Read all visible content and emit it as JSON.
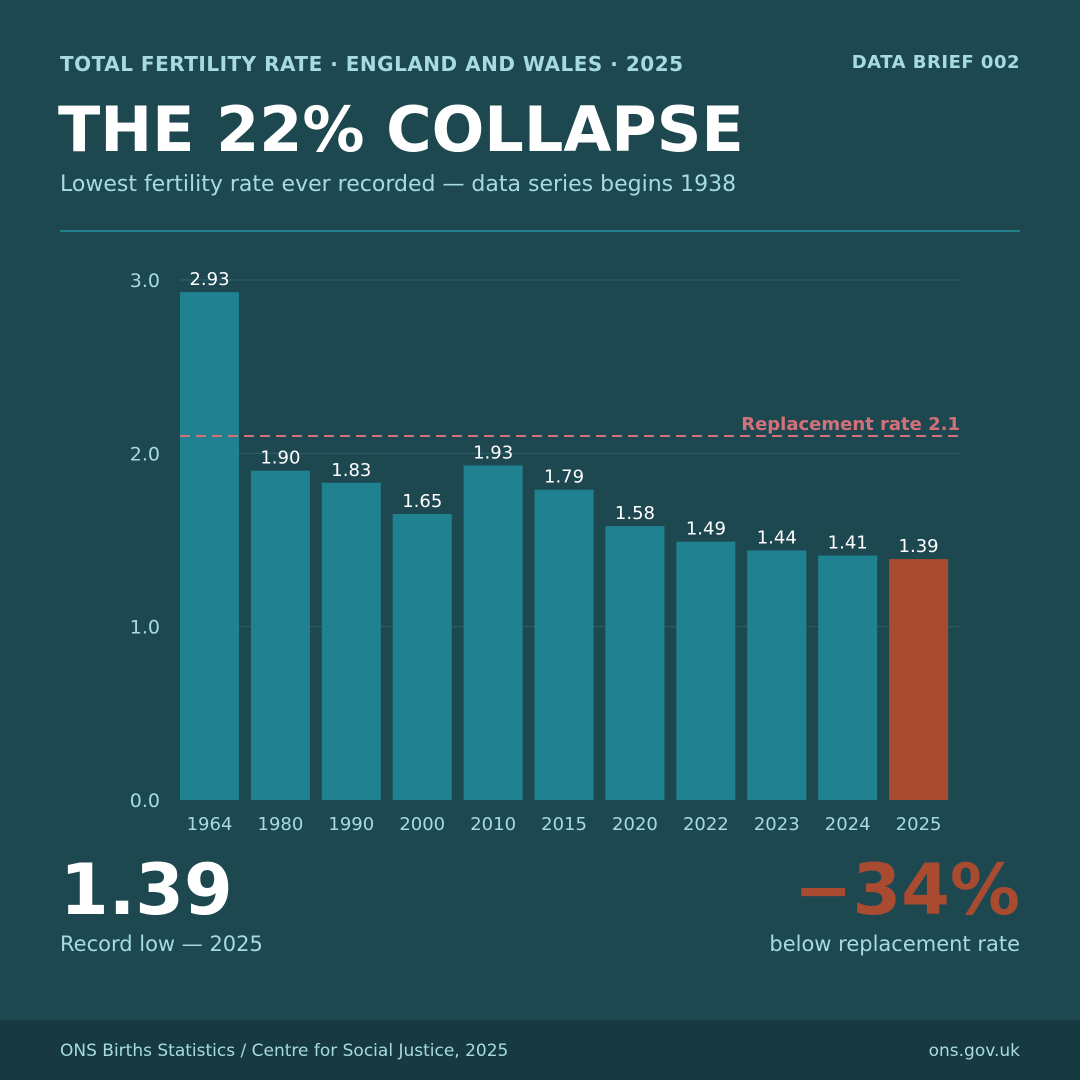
{
  "header": {
    "kicker": "TOTAL FERTILITY RATE · ENGLAND AND WALES · 2025",
    "brief": "DATA BRIEF 002",
    "title": "THE 22% COLLAPSE",
    "subtitle": "Lowest fertility rate ever recorded — data series begins 1938"
  },
  "chart_data": {
    "type": "bar",
    "categories": [
      "1964",
      "1980",
      "1990",
      "2000",
      "2010",
      "2015",
      "2020",
      "2022",
      "2023",
      "2024",
      "2025"
    ],
    "values": [
      2.93,
      1.9,
      1.83,
      1.65,
      1.93,
      1.79,
      1.58,
      1.49,
      1.44,
      1.41,
      1.39
    ],
    "value_labels": [
      "2.93",
      "1.90",
      "1.83",
      "1.65",
      "1.93",
      "1.79",
      "1.58",
      "1.49",
      "1.44",
      "1.41",
      "1.39"
    ],
    "ylim": [
      0,
      3
    ],
    "yticks": [
      0,
      1,
      2,
      3
    ],
    "ytick_labels": [
      "0.0",
      "1.0",
      "2.0",
      "3.0"
    ],
    "grid": true,
    "highlight_category": "2025",
    "reference_line": {
      "value": 2.1,
      "label": "Replacement rate 2.1"
    },
    "colors": {
      "bar": "#208290",
      "highlight": "#a84b30",
      "reference": "#d4707a",
      "grid": "#2d5f67",
      "axis_text": "#a6dbe0",
      "value_text": "#ffffff"
    }
  },
  "stats": {
    "record_value": "1.39",
    "record_caption": "Record low — 2025",
    "below_value": "−34%",
    "below_caption": "below replacement rate"
  },
  "footer": {
    "source": "ONS Births Statistics / Centre for Social Justice, 2025",
    "url": "ons.gov.uk"
  }
}
